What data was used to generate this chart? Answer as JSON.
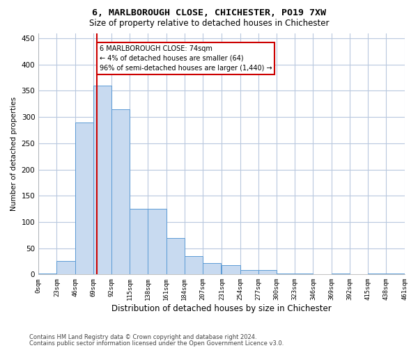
{
  "title": "6, MARLBOROUGH CLOSE, CHICHESTER, PO19 7XW",
  "subtitle": "Size of property relative to detached houses in Chichester",
  "xlabel": "Distribution of detached houses by size in Chichester",
  "ylabel": "Number of detached properties",
  "bar_color": "#c8daf0",
  "bar_edge_color": "#5b9bd5",
  "background_color": "#ffffff",
  "grid_color": "#b8c8de",
  "annotation_box_color": "#cc0000",
  "property_line_color": "#cc0000",
  "property_value": 74,
  "annotation_text": "6 MARLBOROUGH CLOSE: 74sqm\n← 4% of detached houses are smaller (64)\n96% of semi-detached houses are larger (1,440) →",
  "bin_edges": [
    0,
    23,
    46,
    69,
    92,
    115,
    138,
    161,
    184,
    207,
    231,
    254,
    277,
    300,
    323,
    346,
    369,
    392,
    415,
    438,
    461
  ],
  "bin_labels": [
    "0sqm",
    "23sqm",
    "46sqm",
    "69sqm",
    "92sqm",
    "115sqm",
    "138sqm",
    "161sqm",
    "184sqm",
    "207sqm",
    "231sqm",
    "254sqm",
    "277sqm",
    "300sqm",
    "323sqm",
    "346sqm",
    "369sqm",
    "392sqm",
    "415sqm",
    "438sqm",
    "461sqm"
  ],
  "counts": [
    2,
    25,
    290,
    360,
    315,
    125,
    125,
    70,
    35,
    22,
    18,
    8,
    8,
    2,
    2,
    0,
    2,
    0,
    2,
    2
  ],
  "ylim": [
    0,
    460
  ],
  "yticks": [
    0,
    50,
    100,
    150,
    200,
    250,
    300,
    350,
    400,
    450
  ],
  "footnote1": "Contains HM Land Registry data © Crown copyright and database right 2024.",
  "footnote2": "Contains public sector information licensed under the Open Government Licence v3.0."
}
